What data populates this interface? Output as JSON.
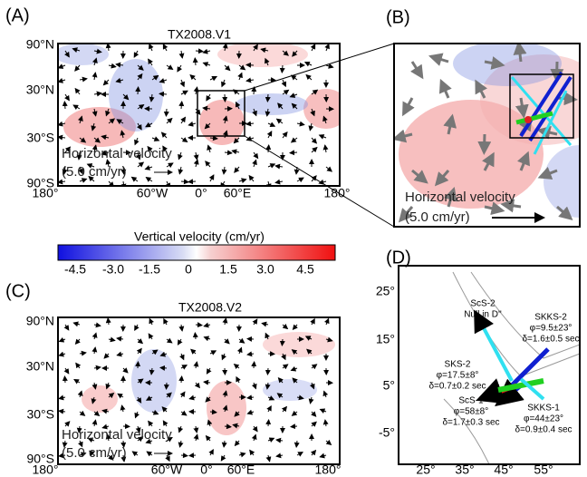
{
  "panels": {
    "a": {
      "label": "(A)",
      "title": "TX2008.V1",
      "yticks": [
        "90°N",
        "30°N",
        "30°S",
        "90°S"
      ],
      "xticks": [
        "180°",
        "60°W",
        "0°",
        "60°E",
        "180°"
      ],
      "annotation": [
        "Horizontal velocity",
        "(5.0 cm/yr)"
      ]
    },
    "b": {
      "label": "(B)",
      "annotation": [
        "Horizontal velocity",
        "(5.0 cm/yr)"
      ]
    },
    "colorbar": {
      "title": "Vertical velocity (cm/yr)",
      "ticks": [
        "-4.5",
        "-3.0",
        "-1.5",
        "0",
        "1.5",
        "3.0",
        "4.5"
      ]
    },
    "c": {
      "label": "(C)",
      "title": "TX2008.V2",
      "yticks": [
        "90°N",
        "30°N",
        "30°S",
        "90°S"
      ],
      "xticks": [
        "180°",
        "60°W",
        "0°",
        "60°E",
        "180°"
      ],
      "annotation": [
        "Horizontal velocity",
        "(5.0 cm/yr)"
      ]
    },
    "d": {
      "label": "(D)",
      "yticks": [
        "25°",
        "15°",
        "5°",
        "-5°"
      ],
      "xticks": [
        "25°",
        "35°",
        "45°",
        "55°"
      ],
      "annotations": [
        [
          "ScS-2",
          "Null in D''"
        ],
        [
          "SKKS-2",
          "φ=9.5±23°",
          "δ=1.6±0.5 sec"
        ],
        [
          "SKS-2",
          "φ=17.5±8°",
          "δ=0.7±0.2 sec"
        ],
        [
          "ScS-1",
          "φ=58±8°",
          "δ=1.7±0.3 sec"
        ],
        [
          "SKKS-1",
          "φ=44±23°",
          "δ=0.9±0.4 sec"
        ]
      ]
    }
  }
}
